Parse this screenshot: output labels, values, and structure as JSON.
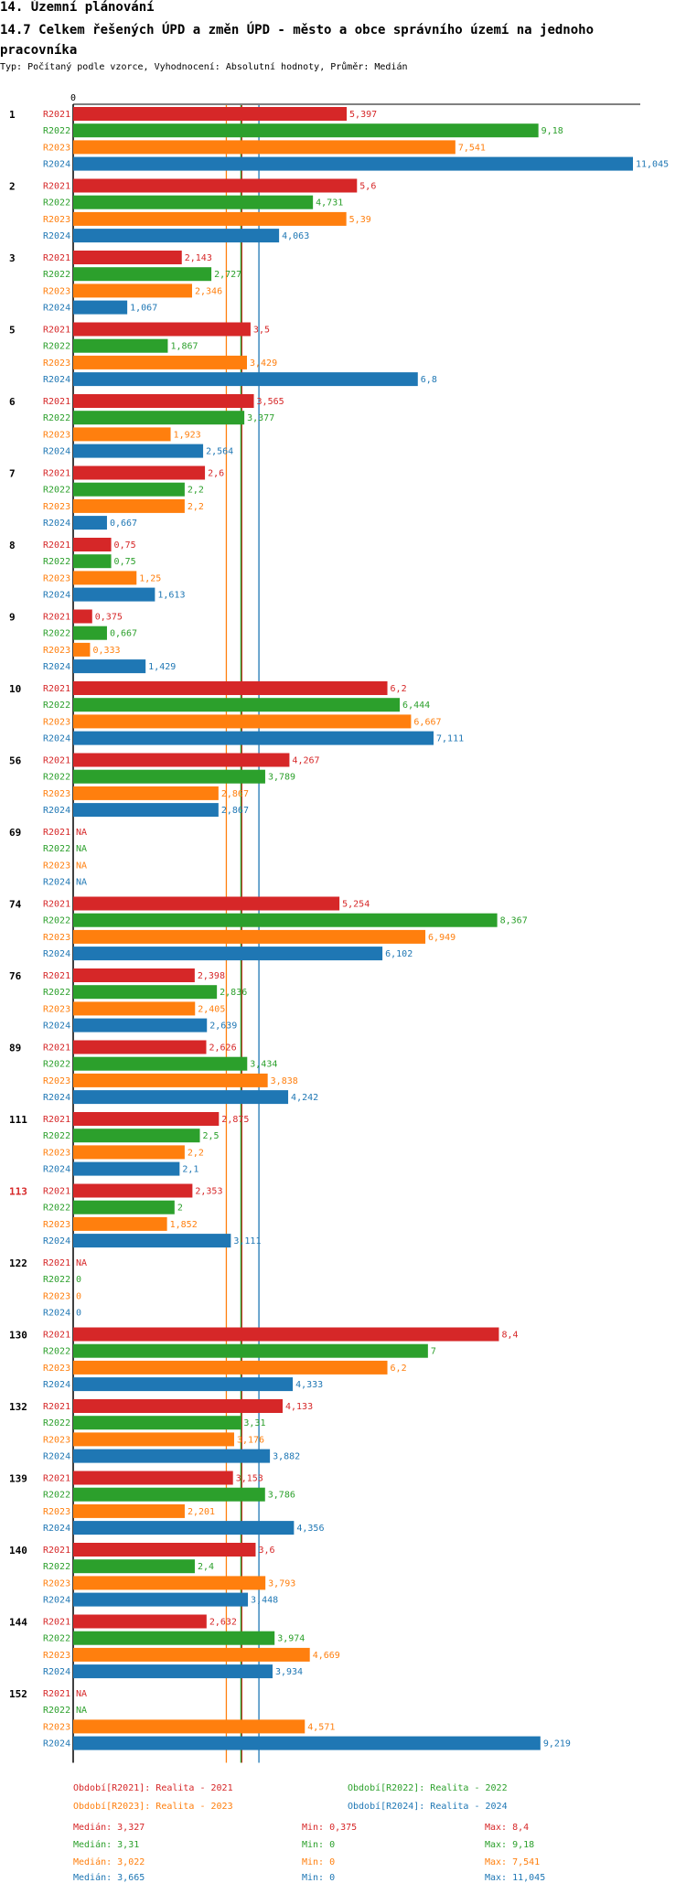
{
  "header": {
    "title": "14. Územní plánování",
    "subtitle": "14.7 Celkem řešených ÚPD a změn ÚPD - město a obce správního území  na jednoho pracovníka",
    "type_line": "Typ: Počítaný podle vzorce, Vyhodnocení: Absolutní hodnoty, Průměr: Medián"
  },
  "colors": {
    "R2021": "#d62728",
    "R2022": "#2ca02c",
    "R2023": "#ff7f0e",
    "R2024": "#1f77b4",
    "highlight_group": "#d62728"
  },
  "chart_data": {
    "type": "bar",
    "orientation": "horizontal",
    "title": "14.7 Celkem řešených ÚPD a změn ÚPD - město a obce správního území  na jednoho pracovníka",
    "xlim": [
      0,
      11.045
    ],
    "x_axis_tick": "0",
    "series_names": [
      "R2021",
      "R2022",
      "R2023",
      "R2024"
    ],
    "highlighted_group": "113",
    "groups": [
      {
        "label": "1",
        "values": [
          5.397,
          9.18,
          7.541,
          11.045
        ],
        "labels": [
          "5,397",
          "9,18",
          "7,541",
          "11,045"
        ]
      },
      {
        "label": "2",
        "values": [
          5.6,
          4.731,
          5.39,
          4.063
        ],
        "labels": [
          "5,6",
          "4,731",
          "5,39",
          "4,063"
        ]
      },
      {
        "label": "3",
        "values": [
          2.143,
          2.727,
          2.346,
          1.067
        ],
        "labels": [
          "2,143",
          "2,727",
          "2,346",
          "1,067"
        ]
      },
      {
        "label": "5",
        "values": [
          3.5,
          1.867,
          3.429,
          6.8
        ],
        "labels": [
          "3,5",
          "1,867",
          "3,429",
          "6,8"
        ]
      },
      {
        "label": "6",
        "values": [
          3.565,
          3.377,
          1.923,
          2.564
        ],
        "labels": [
          "3,565",
          "3,377",
          "1,923",
          "2,564"
        ]
      },
      {
        "label": "7",
        "values": [
          2.6,
          2.2,
          2.2,
          0.667
        ],
        "labels": [
          "2,6",
          "2,2",
          "2,2",
          "0,667"
        ]
      },
      {
        "label": "8",
        "values": [
          0.75,
          0.75,
          1.25,
          1.613
        ],
        "labels": [
          "0,75",
          "0,75",
          "1,25",
          "1,613"
        ]
      },
      {
        "label": "9",
        "values": [
          0.375,
          0.667,
          0.333,
          1.429
        ],
        "labels": [
          "0,375",
          "0,667",
          "0,333",
          "1,429"
        ]
      },
      {
        "label": "10",
        "values": [
          6.2,
          6.444,
          6.667,
          7.111
        ],
        "labels": [
          "6,2",
          "6,444",
          "6,667",
          "7,111"
        ]
      },
      {
        "label": "56",
        "values": [
          4.267,
          3.789,
          2.867,
          2.867
        ],
        "labels": [
          "4,267",
          "3,789",
          "2,867",
          "2,867"
        ]
      },
      {
        "label": "69",
        "values": [
          null,
          null,
          null,
          null
        ],
        "labels": [
          "NA",
          "NA",
          "NA",
          "NA"
        ]
      },
      {
        "label": "74",
        "values": [
          5.254,
          8.367,
          6.949,
          6.102
        ],
        "labels": [
          "5,254",
          "8,367",
          "6,949",
          "6,102"
        ]
      },
      {
        "label": "76",
        "values": [
          2.398,
          2.836,
          2.405,
          2.639
        ],
        "labels": [
          "2,398",
          "2,836",
          "2,405",
          "2,639"
        ]
      },
      {
        "label": "89",
        "values": [
          2.626,
          3.434,
          3.838,
          4.242
        ],
        "labels": [
          "2,626",
          "3,434",
          "3,838",
          "4,242"
        ]
      },
      {
        "label": "111",
        "values": [
          2.875,
          2.5,
          2.2,
          2.1
        ],
        "labels": [
          "2,875",
          "2,5",
          "2,2",
          "2,1"
        ]
      },
      {
        "label": "113",
        "values": [
          2.353,
          2,
          1.852,
          3.111
        ],
        "labels": [
          "2,353",
          "2",
          "1,852",
          "3,111"
        ]
      },
      {
        "label": "122",
        "values": [
          null,
          0,
          0,
          0
        ],
        "labels": [
          "NA",
          "0",
          "0",
          "0"
        ]
      },
      {
        "label": "130",
        "values": [
          8.4,
          7,
          6.2,
          4.333
        ],
        "labels": [
          "8,4",
          "7",
          "6,2",
          "4,333"
        ]
      },
      {
        "label": "132",
        "values": [
          4.133,
          3.31,
          3.176,
          3.882
        ],
        "labels": [
          "4,133",
          "3,31",
          "3,176",
          "3,882"
        ]
      },
      {
        "label": "139",
        "values": [
          3.153,
          3.786,
          2.201,
          4.356
        ],
        "labels": [
          "3,153",
          "3,786",
          "2,201",
          "4,356"
        ]
      },
      {
        "label": "140",
        "values": [
          3.6,
          2.4,
          3.793,
          3.448
        ],
        "labels": [
          "3,6",
          "2,4",
          "3,793",
          "3,448"
        ]
      },
      {
        "label": "144",
        "values": [
          2.632,
          3.974,
          4.669,
          3.934
        ],
        "labels": [
          "2,632",
          "3,974",
          "4,669",
          "3,934"
        ]
      },
      {
        "label": "152",
        "values": [
          null,
          null,
          4.571,
          9.219
        ],
        "labels": [
          "NA",
          "NA",
          "4,571",
          "9,219"
        ]
      }
    ],
    "medians": [
      3.327,
      3.31,
      3.022,
      3.665
    ]
  },
  "legend": [
    {
      "series": "R2021",
      "text": "Období[R2021]: Realita - 2021"
    },
    {
      "series": "R2022",
      "text": "Období[R2022]: Realita - 2022"
    },
    {
      "series": "R2023",
      "text": "Období[R2023]: Realita - 2023"
    },
    {
      "series": "R2024",
      "text": "Období[R2024]: Realita - 2024"
    }
  ],
  "stats": [
    {
      "series": "R2021",
      "median": "Medián: 3,327",
      "min": "Min: 0,375",
      "max": "Max: 8,4"
    },
    {
      "series": "R2022",
      "median": "Medián: 3,31",
      "min": "Min: 0",
      "max": "Max: 9,18"
    },
    {
      "series": "R2023",
      "median": "Medián: 3,022",
      "min": "Min: 0",
      "max": "Max: 7,541"
    },
    {
      "series": "R2024",
      "median": "Medián: 3,665",
      "min": "Min: 0",
      "max": "Max: 11,045"
    }
  ]
}
